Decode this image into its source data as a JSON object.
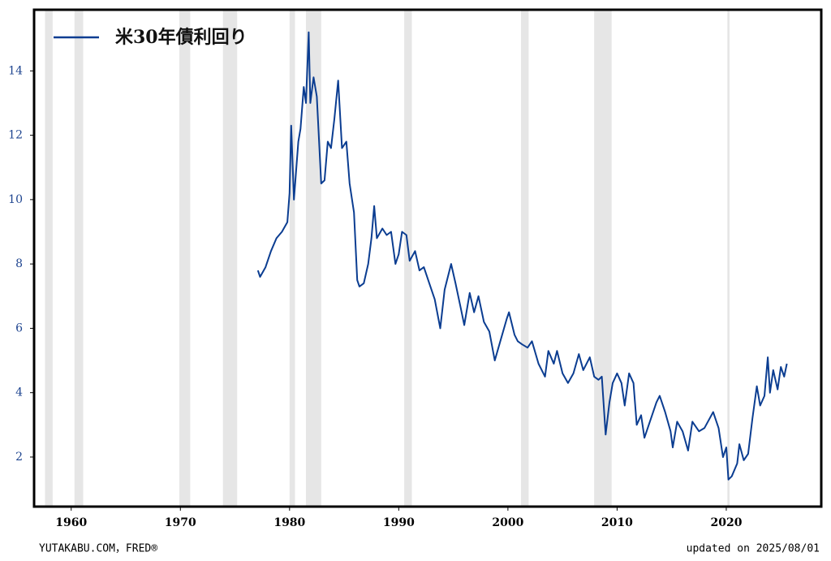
{
  "chart_data": {
    "type": "line",
    "series": [
      {
        "name": "米30年債利回り",
        "color": "#0b3d91",
        "x": [
          1977.1,
          1977.3,
          1977.8,
          1978.3,
          1978.8,
          1979.3,
          1979.8,
          1980.0,
          1980.15,
          1980.4,
          1980.8,
          1981.0,
          1981.3,
          1981.5,
          1981.75,
          1981.9,
          1982.2,
          1982.5,
          1982.9,
          1983.2,
          1983.5,
          1983.8,
          1984.1,
          1984.45,
          1984.8,
          1985.2,
          1985.5,
          1985.9,
          1986.2,
          1986.4,
          1986.8,
          1987.2,
          1987.5,
          1987.75,
          1988.0,
          1988.5,
          1988.9,
          1989.3,
          1989.7,
          1990.0,
          1990.3,
          1990.7,
          1991.0,
          1991.5,
          1991.9,
          1992.3,
          1992.8,
          1993.3,
          1993.8,
          1994.2,
          1994.8,
          1995.2,
          1995.7,
          1996.0,
          1996.5,
          1996.9,
          1997.3,
          1997.8,
          1998.3,
          1998.8,
          1999.3,
          1999.9,
          2000.1,
          2000.6,
          2000.9,
          2001.3,
          2001.8,
          2002.2,
          2002.8,
          2003.4,
          2003.7,
          2004.2,
          2004.5,
          2005.0,
          2005.5,
          2006.0,
          2006.5,
          2006.9,
          2007.5,
          2007.9,
          2008.3,
          2008.6,
          2008.95,
          2009.3,
          2009.6,
          2010.0,
          2010.4,
          2010.7,
          2011.1,
          2011.5,
          2011.8,
          2012.2,
          2012.5,
          2013.0,
          2013.6,
          2013.9,
          2014.4,
          2014.9,
          2015.1,
          2015.5,
          2016.0,
          2016.5,
          2016.9,
          2017.5,
          2018.0,
          2018.8,
          2019.3,
          2019.7,
          2020.0,
          2020.2,
          2020.5,
          2021.0,
          2021.2,
          2021.6,
          2022.0,
          2022.4,
          2022.8,
          2023.1,
          2023.5,
          2023.8,
          2024.0,
          2024.3,
          2024.7,
          2025.0,
          2025.3,
          2025.55
        ],
        "values": [
          7.8,
          7.6,
          7.9,
          8.4,
          8.8,
          9.0,
          9.3,
          10.2,
          12.3,
          10.0,
          11.8,
          12.2,
          13.5,
          13.0,
          15.2,
          13.0,
          13.8,
          13.2,
          10.5,
          10.6,
          11.8,
          11.6,
          12.5,
          13.7,
          11.6,
          11.8,
          10.5,
          9.6,
          7.5,
          7.3,
          7.4,
          8.0,
          8.8,
          9.8,
          8.8,
          9.1,
          8.9,
          9.0,
          8.0,
          8.3,
          9.0,
          8.9,
          8.1,
          8.4,
          7.8,
          7.9,
          7.4,
          6.9,
          6.0,
          7.2,
          8.0,
          7.4,
          6.6,
          6.1,
          7.1,
          6.5,
          7.0,
          6.2,
          5.9,
          5.0,
          5.6,
          6.3,
          6.5,
          5.8,
          5.6,
          5.5,
          5.4,
          5.6,
          4.9,
          4.5,
          5.3,
          4.9,
          5.3,
          4.6,
          4.3,
          4.6,
          5.2,
          4.7,
          5.1,
          4.5,
          4.4,
          4.5,
          2.7,
          3.7,
          4.3,
          4.6,
          4.3,
          3.6,
          4.6,
          4.3,
          3.0,
          3.3,
          2.6,
          3.1,
          3.7,
          3.9,
          3.4,
          2.8,
          2.3,
          3.1,
          2.8,
          2.2,
          3.1,
          2.8,
          2.9,
          3.4,
          2.9,
          2.0,
          2.3,
          1.3,
          1.4,
          1.8,
          2.4,
          1.9,
          2.1,
          3.2,
          4.2,
          3.6,
          3.9,
          5.1,
          4.0,
          4.7,
          4.1,
          4.8,
          4.5,
          4.9
        ]
      }
    ],
    "recessions": [
      [
        1957.6,
        1958.3
      ],
      [
        1960.3,
        1961.1
      ],
      [
        1969.9,
        1970.9
      ],
      [
        1973.9,
        1975.2
      ],
      [
        1980.0,
        1980.5
      ],
      [
        1981.5,
        1982.9
      ],
      [
        1990.5,
        1991.2
      ],
      [
        2001.2,
        2001.9
      ],
      [
        2007.9,
        2009.5
      ],
      [
        2020.1,
        2020.3
      ]
    ],
    "recession_color": "#e6e6e6",
    "xlim": [
      1956.6,
      2028.7
    ],
    "xticks": [
      1960,
      1970,
      1980,
      1990,
      2000,
      2010,
      2020
    ],
    "ylim": [
      0.46,
      15.9
    ],
    "yticks": [
      2,
      4,
      6,
      8,
      10,
      12,
      14
    ],
    "legend": "upper left",
    "source": "YUTAKABU.COM，FRED®",
    "updated": "updated on 2025/08/01"
  }
}
